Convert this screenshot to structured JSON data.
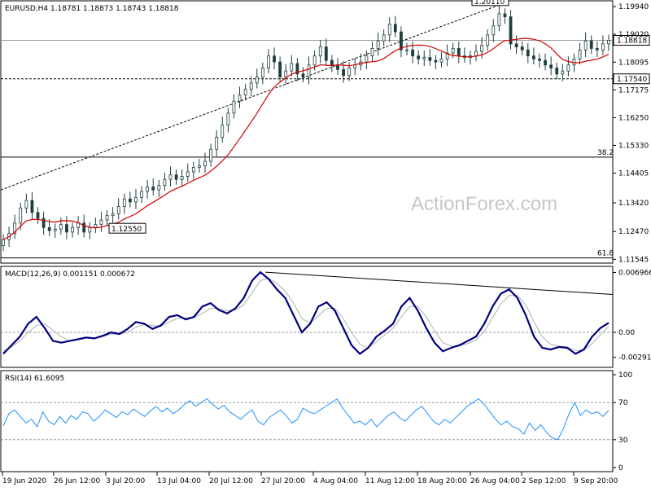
{
  "chart_data": [
    {
      "type": "candlestick",
      "title": "EURUSD,H4  1.18781  1.18873  1.18743  1.18818",
      "last_price_label": "1.18818",
      "watermark": "ActionForex.com",
      "y_ticks": [
        "1.19940",
        "1.19020",
        "1.18095",
        "1.17175",
        "1.16250",
        "1.15330",
        "1.14405",
        "1.13420",
        "1.12470",
        "1.11545"
      ],
      "ylim": [
        1.115,
        1.2005
      ],
      "x_ticks": [
        "19 Jun 2020",
        "26 Jun 12:00",
        "3 Jul 20:00",
        "13 Jul 04:00",
        "20 Jul 12:00",
        "27 Jul 20:00",
        "4 Aug 04:00",
        "11 Aug 12:00",
        "18 Aug 20:00",
        "26 Aug 04:00",
        "2 Sep 12:00",
        "9 Sep 20:00"
      ],
      "annotations": [
        {
          "text": "1.20110",
          "price": 1.2011
        },
        {
          "text": "1.12550",
          "price": 1.1255
        },
        {
          "text": "1.17540",
          "price": 1.1754
        },
        {
          "text": "38.2",
          "price": 1.1494
        },
        {
          "text": "61.8",
          "price": 1.1159
        }
      ],
      "candles_close": [
        1.122,
        1.124,
        1.1275,
        1.1325,
        1.135,
        1.131,
        1.129,
        1.126,
        1.125,
        1.1255,
        1.127,
        1.1245,
        1.126,
        1.1275,
        1.1245,
        1.126,
        1.127,
        1.1285,
        1.13,
        1.1305,
        1.133,
        1.1355,
        1.1345,
        1.136,
        1.138,
        1.1395,
        1.1385,
        1.14,
        1.142,
        1.1435,
        1.142,
        1.143,
        1.1445,
        1.146,
        1.1465,
        1.148,
        1.152,
        1.156,
        1.16,
        1.164,
        1.168,
        1.17,
        1.172,
        1.174,
        1.176,
        1.179,
        1.183,
        1.181,
        1.176,
        1.178,
        1.1805,
        1.177,
        1.176,
        1.18,
        1.183,
        1.186,
        1.1815,
        1.18,
        1.1785,
        1.1765,
        1.179,
        1.18,
        1.181,
        1.183,
        1.1855,
        1.188,
        1.19,
        1.1935,
        1.191,
        1.185,
        1.185,
        1.183,
        1.182,
        1.1825,
        1.1815,
        1.181,
        1.182,
        1.184,
        1.1855,
        1.183,
        1.1825,
        1.183,
        1.1845,
        1.1865,
        1.19,
        1.193,
        1.197,
        1.196,
        1.187,
        1.186,
        1.185,
        1.183,
        1.182,
        1.1815,
        1.18,
        1.179,
        1.177,
        1.178,
        1.18,
        1.182,
        1.185,
        1.188,
        1.1855,
        1.185,
        1.187,
        1.1882
      ]
    },
    {
      "type": "line",
      "title": "MACD(12,26,9) 0.001151 0.000672",
      "y_ticks": [
        "0.006966",
        "0.00",
        "-0.002913"
      ],
      "ylim": [
        -0.0036,
        0.0072
      ],
      "series": [
        {
          "values": [
            -0.0025,
            -0.0015,
            -0.0005,
            0.001,
            0.0018,
            0.0005,
            -0.001,
            -0.0012,
            -0.001,
            -0.0008,
            -0.0006,
            -0.0007,
            -0.0004,
            0.0,
            -0.0002,
            0.0004,
            0.0012,
            0.001,
            0.0004,
            0.0008,
            0.0018,
            0.002,
            0.0015,
            0.0018,
            0.003,
            0.0034,
            0.0026,
            0.0022,
            0.0028,
            0.004,
            0.006,
            0.007,
            0.0062,
            0.005,
            0.004,
            0.002,
            0.0,
            0.001,
            0.003,
            0.0035,
            0.0025,
            0.0005,
            -0.0015,
            -0.0025,
            -0.0018,
            -0.0005,
            0.0002,
            0.001,
            0.003,
            0.004,
            0.0025,
            0.0005,
            -0.0012,
            -0.0022,
            -0.0018,
            -0.0015,
            -0.001,
            -0.0005,
            0.001,
            0.003,
            0.0045,
            0.005,
            0.004,
            0.002,
            -0.0005,
            -0.0018,
            -0.002,
            -0.0017,
            -0.0018,
            -0.0025,
            -0.002,
            -0.0005,
            0.0005,
            0.0011
          ]
        },
        {
          "values": [
            -0.0022,
            -0.0017,
            -0.001,
            0.0,
            0.0008,
            0.001,
            0.0002,
            -0.0005,
            -0.001,
            -0.0009,
            -0.0007,
            -0.0007,
            -0.0005,
            -0.0002,
            -0.0002,
            0.0,
            0.0006,
            0.0009,
            0.0008,
            0.0007,
            0.0012,
            0.0016,
            0.0017,
            0.0017,
            0.0022,
            0.0028,
            0.0028,
            0.0025,
            0.0026,
            0.0032,
            0.0046,
            0.006,
            0.0063,
            0.0057,
            0.0048,
            0.0034,
            0.0016,
            0.0011,
            0.0019,
            0.0028,
            0.0028,
            0.0016,
            0.0,
            -0.0014,
            -0.0018,
            -0.0011,
            -0.0003,
            0.0005,
            0.0018,
            0.003,
            0.003,
            0.0018,
            0.0002,
            -0.0012,
            -0.0016,
            -0.0016,
            -0.0013,
            -0.0009,
            0.0001,
            0.0017,
            0.0033,
            0.0043,
            0.0043,
            0.0032,
            0.0012,
            -0.0005,
            -0.0014,
            -0.0016,
            -0.0017,
            -0.0021,
            -0.0021,
            -0.0013,
            -0.0003,
            0.0007
          ]
        }
      ]
    },
    {
      "type": "line",
      "title": "RSI(14) 61.6095",
      "y_ticks": [
        "100",
        "70",
        "30",
        "0"
      ],
      "ylim": [
        0,
        100
      ],
      "levels": [
        70,
        30
      ],
      "series": [
        {
          "values": [
            45,
            58,
            62,
            55,
            48,
            52,
            44,
            60,
            50,
            46,
            55,
            48,
            56,
            52,
            60,
            58,
            50,
            55,
            62,
            58,
            54,
            60,
            57,
            63,
            59,
            55,
            61,
            66,
            60,
            64,
            58,
            62,
            68,
            72,
            66,
            70,
            74,
            68,
            63,
            67,
            60,
            56,
            52,
            58,
            62,
            50,
            46,
            54,
            58,
            62,
            56,
            48,
            52,
            64,
            60,
            58,
            62,
            66,
            70,
            74,
            64,
            56,
            48,
            50,
            46,
            52,
            44,
            50,
            56,
            60,
            54,
            50,
            56,
            62,
            66,
            58,
            50,
            46,
            52,
            48,
            54,
            60,
            66,
            70,
            74,
            68,
            60,
            52,
            46,
            50,
            44,
            42,
            36,
            48,
            40,
            46,
            38,
            32,
            30,
            42,
            58,
            70,
            56,
            62,
            58,
            60,
            55,
            61.6
          ]
        }
      ]
    }
  ]
}
